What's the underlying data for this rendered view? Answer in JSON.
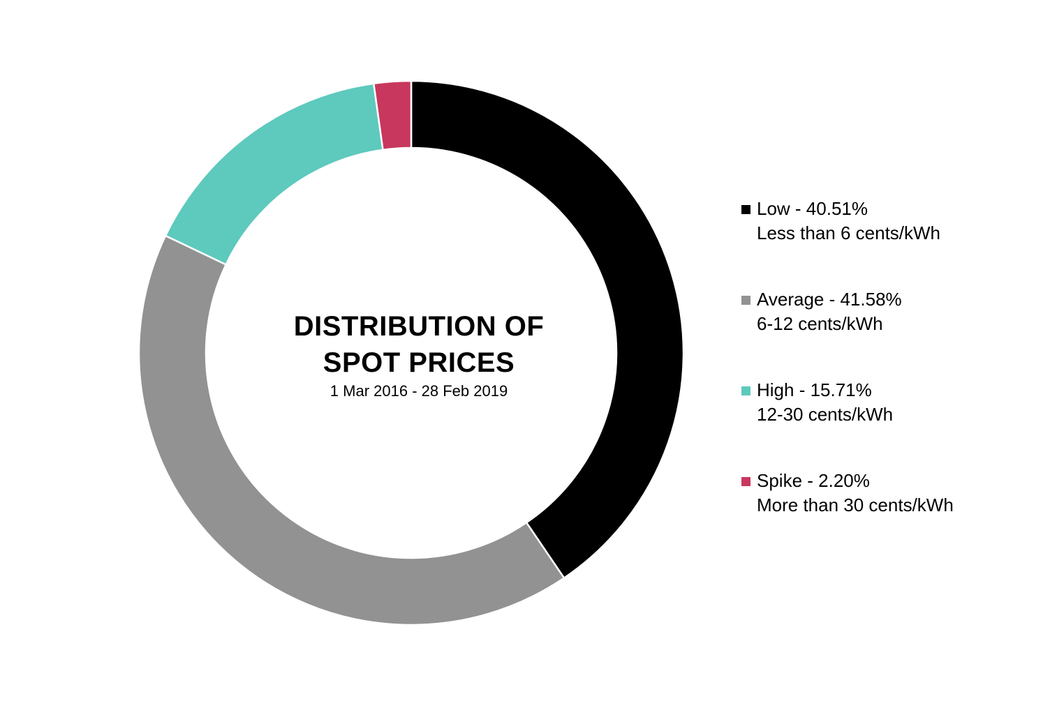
{
  "chart_data": {
    "type": "pie",
    "style": "donut",
    "title": [
      "DISTRIBUTION OF",
      "SPOT PRICES"
    ],
    "subtitle": "1 Mar 2016 - 28 Feb 2019",
    "legend_position": "right",
    "series": [
      {
        "name": "Low",
        "value": 40.51,
        "label": "Low - 40.51%",
        "description": "Less than 6 cents/kWh",
        "color": "#000000"
      },
      {
        "name": "Average",
        "value": 41.58,
        "label": "Average - 41.58%",
        "description": "6-12 cents/kWh",
        "color": "#929292"
      },
      {
        "name": "High",
        "value": 15.71,
        "label": "High - 15.71%",
        "description": "12-30 cents/kWh",
        "color": "#5ec9bd"
      },
      {
        "name": "Spike",
        "value": 2.2,
        "label": "Spike - 2.20%",
        "description": "More than 30 cents/kWh",
        "color": "#c8375d"
      }
    ]
  }
}
